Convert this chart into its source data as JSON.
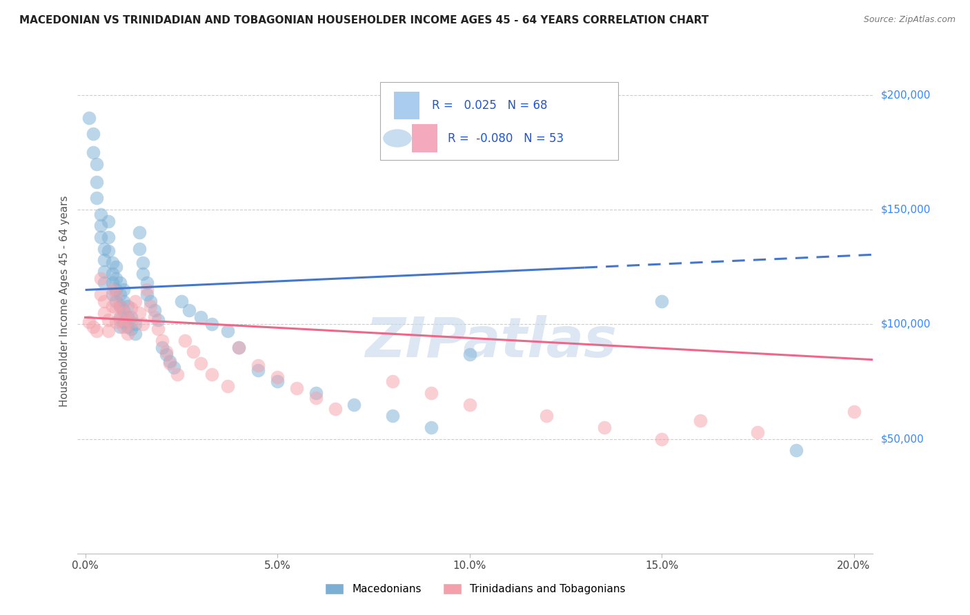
{
  "title": "MACEDONIAN VS TRINIDADIAN AND TOBAGONIAN HOUSEHOLDER INCOME AGES 45 - 64 YEARS CORRELATION CHART",
  "source": "Source: ZipAtlas.com",
  "ylabel": "Householder Income Ages 45 - 64 years",
  "xlabel_ticks": [
    "0.0%",
    "5.0%",
    "10.0%",
    "15.0%",
    "20.0%"
  ],
  "xlabel_tick_vals": [
    0.0,
    0.05,
    0.1,
    0.15,
    0.2
  ],
  "ytick_labels": [
    "$50,000",
    "$100,000",
    "$150,000",
    "$200,000"
  ],
  "ytick_vals": [
    50000,
    100000,
    150000,
    200000
  ],
  "ylim": [
    0,
    220000
  ],
  "xlim": [
    -0.002,
    0.205
  ],
  "legend1_R": "0.025",
  "legend1_N": "68",
  "legend2_R": "-0.080",
  "legend2_N": "53",
  "blue_color": "#7BAFD4",
  "pink_color": "#F4A0AA",
  "blue_line_color": "#4477CC",
  "pink_line_color": "#EE6688",
  "legend_label1": "Macedonians",
  "legend_label2": "Trinidadians and Tobagonians",
  "watermark": "ZIPatlas",
  "blue_x": [
    0.001,
    0.002,
    0.002,
    0.003,
    0.003,
    0.003,
    0.004,
    0.004,
    0.004,
    0.005,
    0.005,
    0.005,
    0.005,
    0.006,
    0.006,
    0.006,
    0.007,
    0.007,
    0.007,
    0.007,
    0.008,
    0.008,
    0.008,
    0.008,
    0.009,
    0.009,
    0.009,
    0.009,
    0.009,
    0.01,
    0.01,
    0.01,
    0.01,
    0.011,
    0.011,
    0.011,
    0.012,
    0.012,
    0.013,
    0.013,
    0.014,
    0.014,
    0.015,
    0.015,
    0.016,
    0.016,
    0.017,
    0.018,
    0.019,
    0.02,
    0.021,
    0.022,
    0.023,
    0.025,
    0.027,
    0.03,
    0.033,
    0.037,
    0.04,
    0.045,
    0.05,
    0.06,
    0.07,
    0.08,
    0.09,
    0.1,
    0.15,
    0.185
  ],
  "blue_y": [
    190000,
    183000,
    175000,
    170000,
    162000,
    155000,
    148000,
    143000,
    138000,
    133000,
    128000,
    123000,
    118000,
    145000,
    138000,
    132000,
    127000,
    122000,
    118000,
    113000,
    125000,
    120000,
    115000,
    110000,
    118000,
    113000,
    108000,
    103000,
    99000,
    115000,
    110000,
    106000,
    101000,
    108000,
    103000,
    99000,
    103000,
    98000,
    100000,
    96000,
    140000,
    133000,
    127000,
    122000,
    118000,
    113000,
    110000,
    106000,
    102000,
    90000,
    87000,
    84000,
    81000,
    110000,
    106000,
    103000,
    100000,
    97000,
    90000,
    80000,
    75000,
    70000,
    65000,
    60000,
    55000,
    87000,
    110000,
    45000
  ],
  "pink_x": [
    0.001,
    0.002,
    0.003,
    0.004,
    0.004,
    0.005,
    0.005,
    0.006,
    0.006,
    0.007,
    0.007,
    0.008,
    0.008,
    0.008,
    0.009,
    0.009,
    0.01,
    0.01,
    0.011,
    0.011,
    0.012,
    0.012,
    0.013,
    0.014,
    0.015,
    0.016,
    0.017,
    0.018,
    0.019,
    0.02,
    0.021,
    0.022,
    0.024,
    0.026,
    0.028,
    0.03,
    0.033,
    0.037,
    0.04,
    0.045,
    0.05,
    0.055,
    0.06,
    0.065,
    0.08,
    0.09,
    0.1,
    0.12,
    0.135,
    0.15,
    0.16,
    0.175,
    0.2
  ],
  "pink_y": [
    101000,
    99000,
    97000,
    120000,
    113000,
    110000,
    105000,
    102000,
    97000,
    115000,
    108000,
    113000,
    107000,
    101000,
    108000,
    102000,
    105000,
    99000,
    102000,
    96000,
    107000,
    101000,
    110000,
    105000,
    100000,
    115000,
    108000,
    103000,
    98000,
    93000,
    88000,
    83000,
    78000,
    93000,
    88000,
    83000,
    78000,
    73000,
    90000,
    82000,
    77000,
    72000,
    68000,
    63000,
    75000,
    70000,
    65000,
    60000,
    55000,
    50000,
    58000,
    53000,
    62000
  ]
}
